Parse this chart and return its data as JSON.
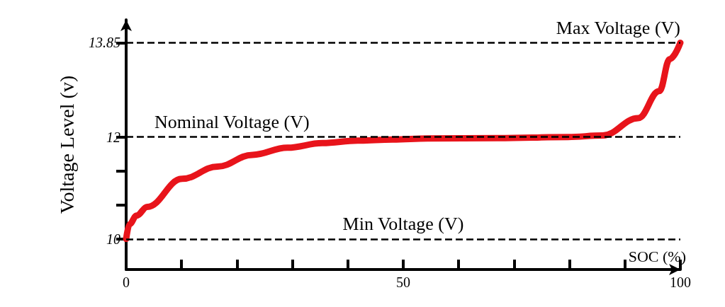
{
  "chart_data": {
    "type": "line",
    "xlabel": "SOC (%)",
    "ylabel": "Voltage Level (v)",
    "xlim": [
      0,
      100
    ],
    "ylim": [
      9.4,
      14.3
    ],
    "xticks": [
      0,
      {
        "value": 10,
        "label": null
      },
      {
        "value": 20,
        "label": null
      },
      {
        "value": 30,
        "label": null
      },
      {
        "value": 40,
        "label": null
      },
      50,
      {
        "value": 60,
        "label": null
      },
      {
        "value": 70,
        "label": null
      },
      {
        "value": 80,
        "label": null
      },
      {
        "value": 90,
        "label": null
      },
      100
    ],
    "yticks": [
      10,
      {
        "value": 10.667,
        "label": null
      },
      {
        "value": 11.333,
        "label": null
      },
      12,
      13.85
    ],
    "grid": false,
    "line_style": "solid",
    "series": [
      {
        "color": "#e8141b",
        "x": [
          0,
          0.6,
          1.9,
          3.8,
          10.1,
          16.5,
          22.8,
          29.1,
          35.4,
          41.8,
          48.1,
          54.4,
          67,
          79.7,
          86,
          92.4,
          96.2,
          98.1,
          100
        ],
        "values": [
          10,
          10.29,
          10.46,
          10.63,
          11.18,
          11.42,
          11.65,
          11.79,
          11.88,
          11.93,
          11.95,
          11.97,
          11.98,
          12.0,
          12.03,
          12.37,
          12.9,
          13.53,
          13.85
        ]
      }
    ],
    "ref_lines": [
      {
        "axis": "y",
        "value": 13.85,
        "label": "Max Voltage (V)",
        "color": "#000000",
        "line_style": "dashed"
      },
      {
        "axis": "y",
        "value": 12,
        "label": "Nominal Voltage (V)",
        "color": "#000000",
        "line_style": "dashed"
      },
      {
        "axis": "y",
        "value": 10,
        "label": "Min Voltage (V)",
        "color": "#000000",
        "line_style": "dashed"
      }
    ]
  }
}
